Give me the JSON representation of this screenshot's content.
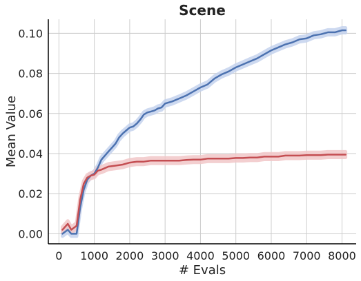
{
  "chart_data": {
    "type": "line",
    "title": "Scene",
    "xlabel": "# Evals",
    "ylabel": "Mean Value",
    "xlim": [
      -300,
      8400
    ],
    "ylim": [
      -0.005,
      0.107
    ],
    "xticks": [
      0,
      1000,
      2000,
      3000,
      4000,
      5000,
      6000,
      7000,
      8000
    ],
    "xtick_labels": [
      "0",
      "1000",
      "2000",
      "3000",
      "4000",
      "5000",
      "6000",
      "7000",
      "8000"
    ],
    "yticks": [
      0.0,
      0.02,
      0.04,
      0.06,
      0.08,
      0.1
    ],
    "ytick_labels": [
      "0.00",
      "0.02",
      "0.04",
      "0.06",
      "0.08",
      "0.10"
    ],
    "grid": true,
    "legend": "none",
    "series": [
      {
        "color": "#4c72b0",
        "band_color": "#c5d3ee",
        "band_halfwidth": 0.0012,
        "x": [
          100,
          250,
          350,
          500,
          600,
          700,
          800,
          900,
          1000,
          1100,
          1200,
          1300,
          1400,
          1500,
          1600,
          1700,
          1800,
          1900,
          2000,
          2100,
          2200,
          2300,
          2400,
          2500,
          2600,
          2700,
          2800,
          2900,
          3000,
          3200,
          3400,
          3600,
          3800,
          4000,
          4200,
          4400,
          4600,
          4800,
          5000,
          5200,
          5400,
          5600,
          5800,
          6000,
          6200,
          6400,
          6600,
          6800,
          7000,
          7200,
          7400,
          7600,
          7800,
          8000,
          8100
        ],
        "y": [
          0.0,
          0.002,
          0.0,
          0.0,
          0.013,
          0.022,
          0.027,
          0.029,
          0.03,
          0.033,
          0.037,
          0.039,
          0.041,
          0.043,
          0.045,
          0.048,
          0.05,
          0.0515,
          0.053,
          0.0535,
          0.055,
          0.057,
          0.0595,
          0.0605,
          0.061,
          0.0615,
          0.0625,
          0.063,
          0.065,
          0.066,
          0.0675,
          0.069,
          0.071,
          0.073,
          0.0745,
          0.0775,
          0.0795,
          0.081,
          0.083,
          0.0845,
          0.086,
          0.0875,
          0.0895,
          0.0915,
          0.093,
          0.0945,
          0.0955,
          0.097,
          0.0975,
          0.099,
          0.0995,
          0.1005,
          0.1005,
          0.1015,
          0.1015
        ]
      },
      {
        "color": "#c44e52",
        "band_color": "#f2c7c8",
        "band_halfwidth": 0.0014,
        "x": [
          100,
          250,
          350,
          500,
          600,
          700,
          800,
          900,
          1000,
          1100,
          1200,
          1400,
          1600,
          1800,
          2000,
          2200,
          2400,
          2600,
          2800,
          3000,
          3200,
          3400,
          3600,
          3800,
          4000,
          4200,
          4400,
          4600,
          4800,
          5000,
          5200,
          5400,
          5600,
          5800,
          6000,
          6200,
          6400,
          6600,
          6800,
          7000,
          7200,
          7400,
          7600,
          7800,
          8000,
          8100
        ],
        "y": [
          0.002,
          0.005,
          0.002,
          0.004,
          0.017,
          0.025,
          0.028,
          0.029,
          0.0295,
          0.0315,
          0.032,
          0.0335,
          0.034,
          0.0345,
          0.0355,
          0.036,
          0.036,
          0.0365,
          0.0365,
          0.0365,
          0.0365,
          0.0365,
          0.0368,
          0.037,
          0.037,
          0.0375,
          0.0375,
          0.0375,
          0.0375,
          0.0378,
          0.0378,
          0.038,
          0.038,
          0.0385,
          0.0385,
          0.0385,
          0.039,
          0.039,
          0.039,
          0.0392,
          0.0392,
          0.0392,
          0.0395,
          0.0395,
          0.0395,
          0.0395
        ]
      }
    ]
  }
}
